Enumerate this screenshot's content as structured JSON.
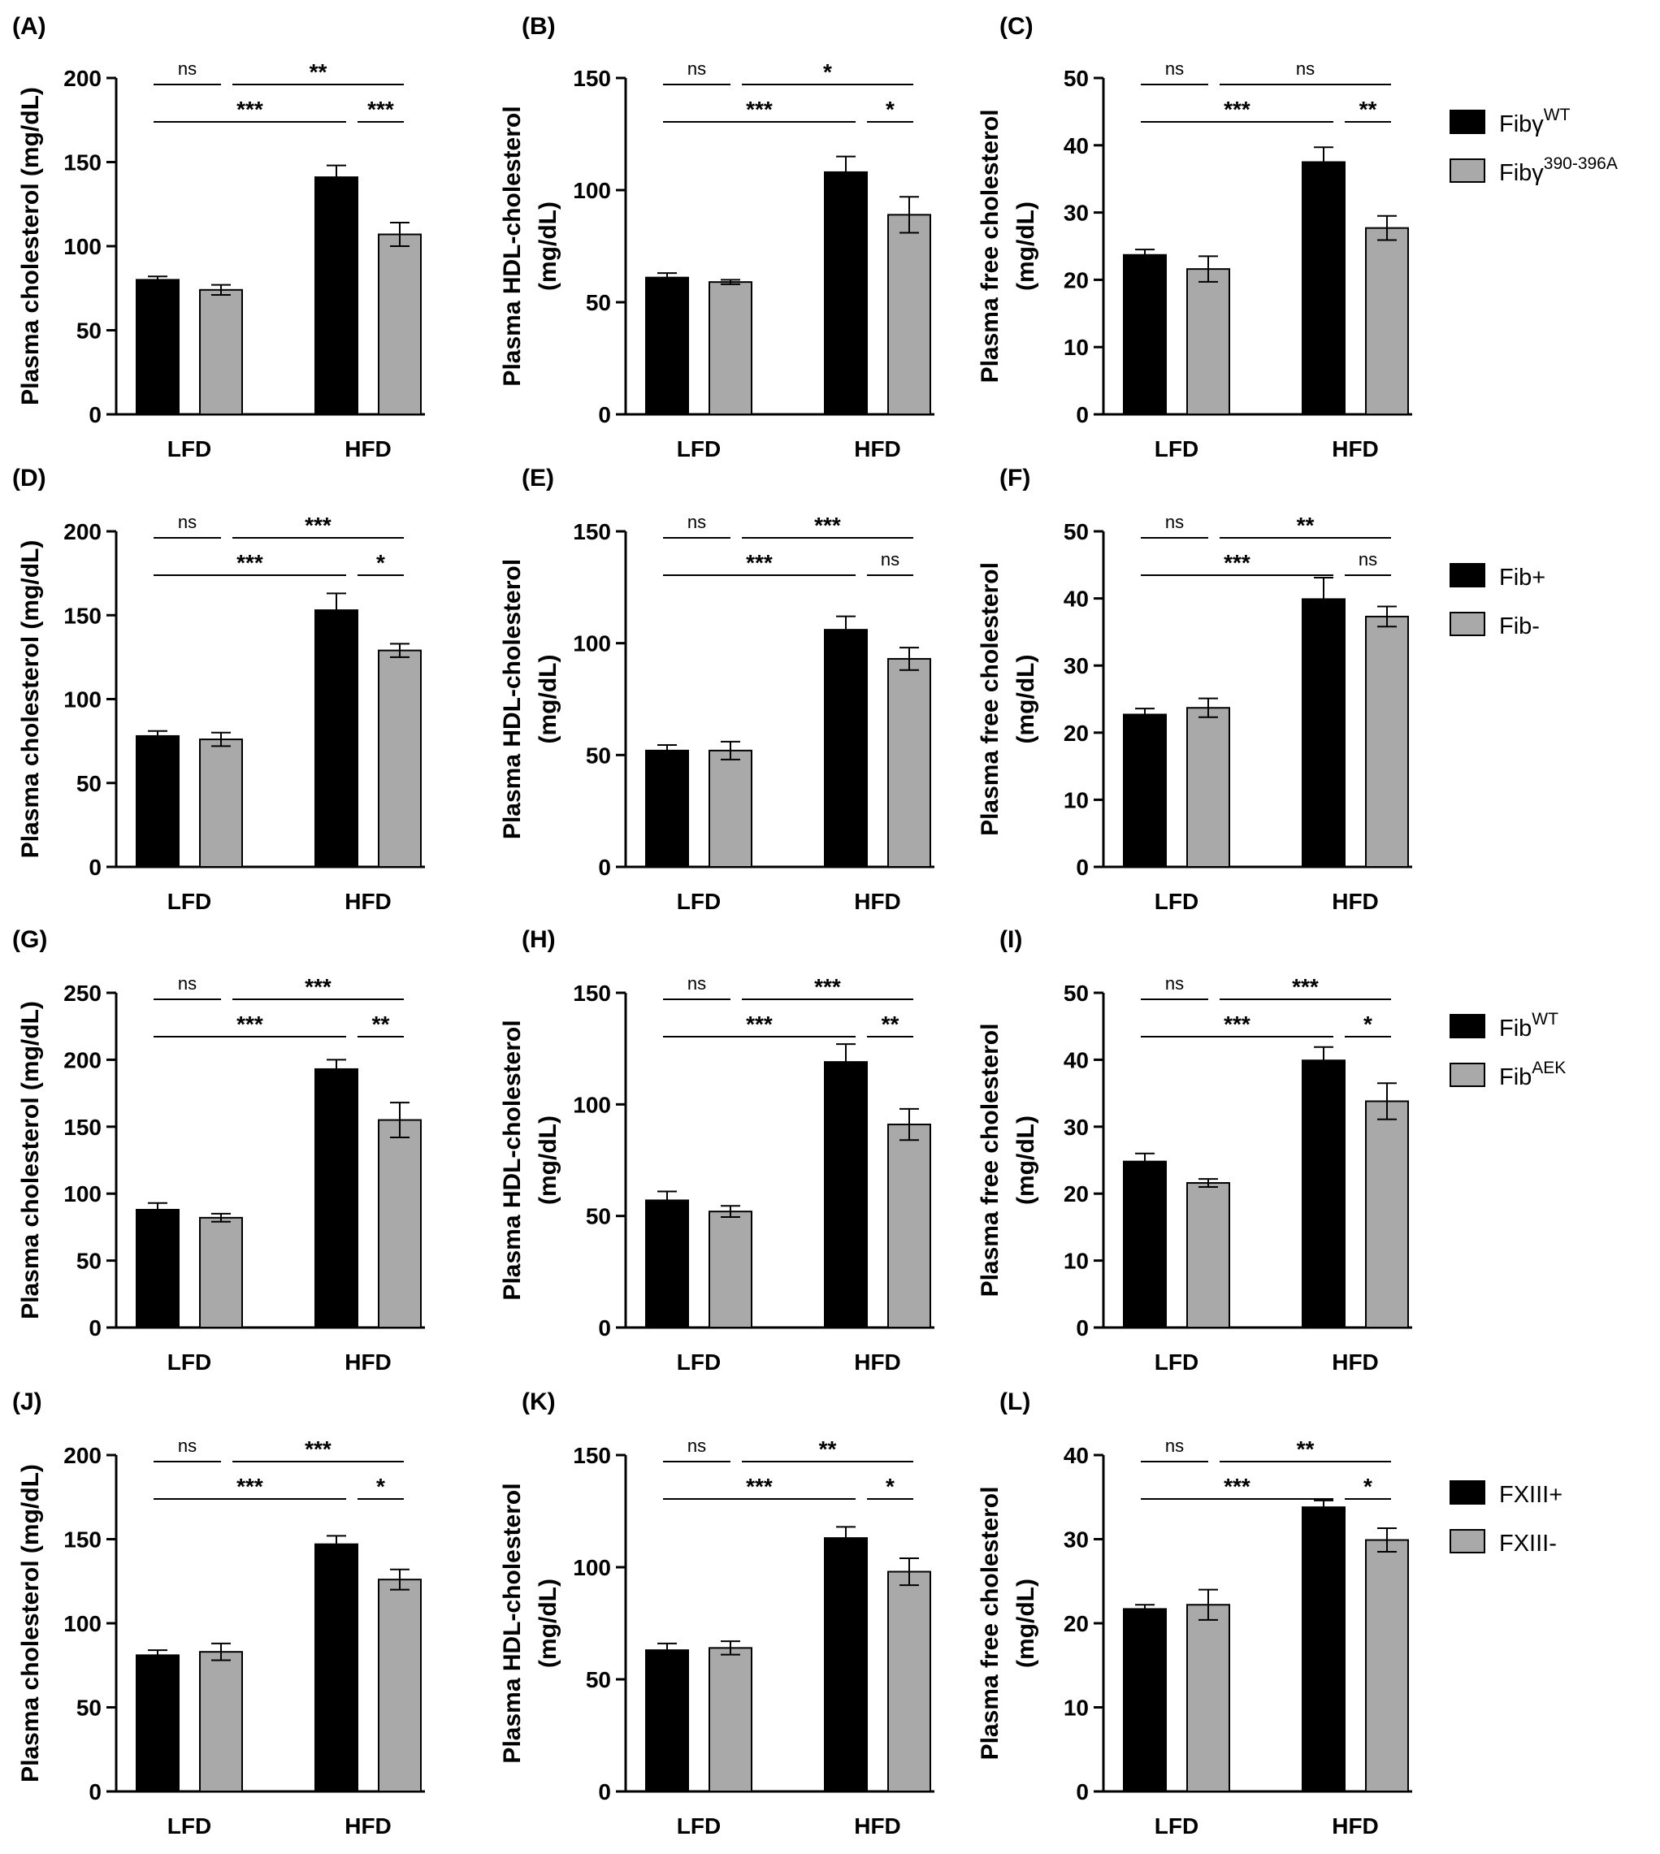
{
  "colors": {
    "series_1": "#000000",
    "series_2": "#a9a9a9",
    "axis": "#000000"
  },
  "legends": [
    {
      "row": 0,
      "items": [
        {
          "base": "Fibγ",
          "sup": "WT"
        },
        {
          "base": "Fibγ",
          "sup": "390-396A"
        }
      ]
    },
    {
      "row": 1,
      "items": [
        {
          "base": "Fib+",
          "sup": ""
        },
        {
          "base": "Fib-",
          "sup": ""
        }
      ]
    },
    {
      "row": 2,
      "items": [
        {
          "base": "Fib",
          "sup": "WT"
        },
        {
          "base": "Fib",
          "sup": "AEK"
        }
      ]
    },
    {
      "row": 3,
      "items": [
        {
          "base": "FXIII+",
          "sup": ""
        },
        {
          "base": "FXIII-",
          "sup": ""
        }
      ]
    }
  ],
  "chart_data": [
    {
      "panel": "(A)",
      "row": 0,
      "col": 0,
      "type": "bar",
      "categories": [
        "LFD",
        "HFD"
      ],
      "ylabel": [
        "Plasma cholesterol (mg/dL)"
      ],
      "ylim": [
        0,
        200
      ],
      "yticks": [
        0,
        50,
        100,
        150,
        200
      ],
      "series": [
        {
          "values": [
            80,
            141
          ],
          "errors": [
            2,
            7
          ]
        },
        {
          "values": [
            74,
            107
          ],
          "errors": [
            3,
            7
          ]
        }
      ],
      "significance": {
        "lfd_pair": "ns",
        "across": "**",
        "series1": "***",
        "hfd_pair": "***"
      }
    },
    {
      "panel": "(B)",
      "row": 0,
      "col": 1,
      "type": "bar",
      "categories": [
        "LFD",
        "HFD"
      ],
      "ylabel": [
        "Plasma HDL-cholesterol",
        "(mg/dL)"
      ],
      "ylim": [
        0,
        150
      ],
      "yticks": [
        0,
        50,
        100,
        150
      ],
      "series": [
        {
          "values": [
            61,
            108
          ],
          "errors": [
            2,
            7
          ]
        },
        {
          "values": [
            59,
            89
          ],
          "errors": [
            1,
            8
          ]
        }
      ],
      "significance": {
        "lfd_pair": "ns",
        "across": "*",
        "series1": "***",
        "hfd_pair": "*"
      }
    },
    {
      "panel": "(C)",
      "row": 0,
      "col": 2,
      "type": "bar",
      "categories": [
        "LFD",
        "HFD"
      ],
      "ylabel": [
        "Plasma free cholesterol",
        "(mg/dL)"
      ],
      "ylim": [
        0,
        50
      ],
      "yticks": [
        0,
        10,
        20,
        30,
        40,
        50
      ],
      "series": [
        {
          "values": [
            23.7,
            37.5
          ],
          "errors": [
            0.8,
            2.2
          ]
        },
        {
          "values": [
            21.6,
            27.7
          ],
          "errors": [
            1.9,
            1.8
          ]
        }
      ],
      "significance": {
        "lfd_pair": "ns",
        "across": "ns",
        "series1": "***",
        "hfd_pair": "**"
      }
    },
    {
      "panel": "(D)",
      "row": 1,
      "col": 0,
      "type": "bar",
      "categories": [
        "LFD",
        "HFD"
      ],
      "ylabel": [
        "Plasma cholesterol (mg/dL)"
      ],
      "ylim": [
        0,
        200
      ],
      "yticks": [
        0,
        50,
        100,
        150,
        200
      ],
      "series": [
        {
          "values": [
            78,
            153
          ],
          "errors": [
            3,
            10
          ]
        },
        {
          "values": [
            76,
            129
          ],
          "errors": [
            4,
            4
          ]
        }
      ],
      "significance": {
        "lfd_pair": "ns",
        "across": "***",
        "series1": "***",
        "hfd_pair": "*"
      }
    },
    {
      "panel": "(E)",
      "row": 1,
      "col": 1,
      "type": "bar",
      "categories": [
        "LFD",
        "HFD"
      ],
      "ylabel": [
        "Plasma HDL-cholesterol",
        "(mg/dL)"
      ],
      "ylim": [
        0,
        150
      ],
      "yticks": [
        0,
        50,
        100,
        150
      ],
      "series": [
        {
          "values": [
            52,
            106
          ],
          "errors": [
            2.5,
            6
          ]
        },
        {
          "values": [
            52,
            93
          ],
          "errors": [
            4,
            5
          ]
        }
      ],
      "significance": {
        "lfd_pair": "ns",
        "across": "***",
        "series1": "***",
        "hfd_pair": "ns"
      }
    },
    {
      "panel": "(F)",
      "row": 1,
      "col": 2,
      "type": "bar",
      "categories": [
        "LFD",
        "HFD"
      ],
      "ylabel": [
        "Plasma free cholesterol",
        "(mg/dL)"
      ],
      "ylim": [
        0,
        50
      ],
      "yticks": [
        0,
        10,
        20,
        30,
        40,
        50
      ],
      "series": [
        {
          "values": [
            22.7,
            39.9
          ],
          "errors": [
            0.9,
            3.2
          ]
        },
        {
          "values": [
            23.7,
            37.3
          ],
          "errors": [
            1.4,
            1.5
          ]
        }
      ],
      "significance": {
        "lfd_pair": "ns",
        "across": "**",
        "series1": "***",
        "hfd_pair": "ns"
      }
    },
    {
      "panel": "(G)",
      "row": 2,
      "col": 0,
      "type": "bar",
      "categories": [
        "LFD",
        "HFD"
      ],
      "ylabel": [
        "Plasma cholesterol (mg/dL)"
      ],
      "ylim": [
        0,
        250
      ],
      "yticks": [
        0,
        50,
        100,
        150,
        200,
        250
      ],
      "series": [
        {
          "values": [
            88,
            193
          ],
          "errors": [
            5,
            7
          ]
        },
        {
          "values": [
            82,
            155
          ],
          "errors": [
            3,
            13
          ]
        }
      ],
      "significance": {
        "lfd_pair": "ns",
        "across": "***",
        "series1": "***",
        "hfd_pair": "**"
      }
    },
    {
      "panel": "(H)",
      "row": 2,
      "col": 1,
      "type": "bar",
      "categories": [
        "LFD",
        "HFD"
      ],
      "ylabel": [
        "Plasma HDL-cholesterol",
        "(mg/dL)"
      ],
      "ylim": [
        0,
        150
      ],
      "yticks": [
        0,
        50,
        100,
        150
      ],
      "series": [
        {
          "values": [
            57,
            119
          ],
          "errors": [
            4,
            8
          ]
        },
        {
          "values": [
            52,
            91
          ],
          "errors": [
            2.5,
            7
          ]
        }
      ],
      "significance": {
        "lfd_pair": "ns",
        "across": "***",
        "series1": "***",
        "hfd_pair": "**"
      }
    },
    {
      "panel": "(I)",
      "row": 2,
      "col": 2,
      "type": "bar",
      "categories": [
        "LFD",
        "HFD"
      ],
      "ylabel": [
        "Plasma free cholesterol",
        "(mg/dL)"
      ],
      "ylim": [
        0,
        50
      ],
      "yticks": [
        0,
        10,
        20,
        30,
        40,
        50
      ],
      "series": [
        {
          "values": [
            24.8,
            39.9
          ],
          "errors": [
            1.2,
            2.0
          ]
        },
        {
          "values": [
            21.6,
            33.8
          ],
          "errors": [
            0.6,
            2.7
          ]
        }
      ],
      "significance": {
        "lfd_pair": "ns",
        "across": "***",
        "series1": "***",
        "hfd_pair": "*"
      }
    },
    {
      "panel": "(J)",
      "row": 3,
      "col": 0,
      "type": "bar",
      "categories": [
        "LFD",
        "HFD"
      ],
      "ylabel": [
        "Plasma cholesterol (mg/dL)"
      ],
      "ylim": [
        0,
        200
      ],
      "yticks": [
        0,
        50,
        100,
        150,
        200
      ],
      "series": [
        {
          "values": [
            81,
            147
          ],
          "errors": [
            3,
            5
          ]
        },
        {
          "values": [
            83,
            126
          ],
          "errors": [
            5,
            6
          ]
        }
      ],
      "significance": {
        "lfd_pair": "ns",
        "across": "***",
        "series1": "***",
        "hfd_pair": "*"
      }
    },
    {
      "panel": "(K)",
      "row": 3,
      "col": 1,
      "type": "bar",
      "categories": [
        "LFD",
        "HFD"
      ],
      "ylabel": [
        "Plasma HDL-cholesterol",
        "(mg/dL)"
      ],
      "ylim": [
        0,
        150
      ],
      "yticks": [
        0,
        50,
        100,
        150
      ],
      "series": [
        {
          "values": [
            63,
            113
          ],
          "errors": [
            3,
            5
          ]
        },
        {
          "values": [
            64,
            98
          ],
          "errors": [
            3,
            6
          ]
        }
      ],
      "significance": {
        "lfd_pair": "ns",
        "across": "**",
        "series1": "***",
        "hfd_pair": "*"
      }
    },
    {
      "panel": "(L)",
      "row": 3,
      "col": 2,
      "type": "bar",
      "categories": [
        "LFD",
        "HFD"
      ],
      "ylabel": [
        "Plasma free cholesterol",
        "(mg/dL)"
      ],
      "ylim": [
        0,
        40
      ],
      "yticks": [
        0,
        10,
        20,
        30,
        40
      ],
      "series": [
        {
          "values": [
            21.7,
            33.8
          ],
          "errors": [
            0.5,
            0.8
          ]
        },
        {
          "values": [
            22.2,
            29.9
          ],
          "errors": [
            1.8,
            1.4
          ]
        }
      ],
      "significance": {
        "lfd_pair": "ns",
        "across": "**",
        "series1": "***",
        "hfd_pair": "*"
      }
    }
  ]
}
